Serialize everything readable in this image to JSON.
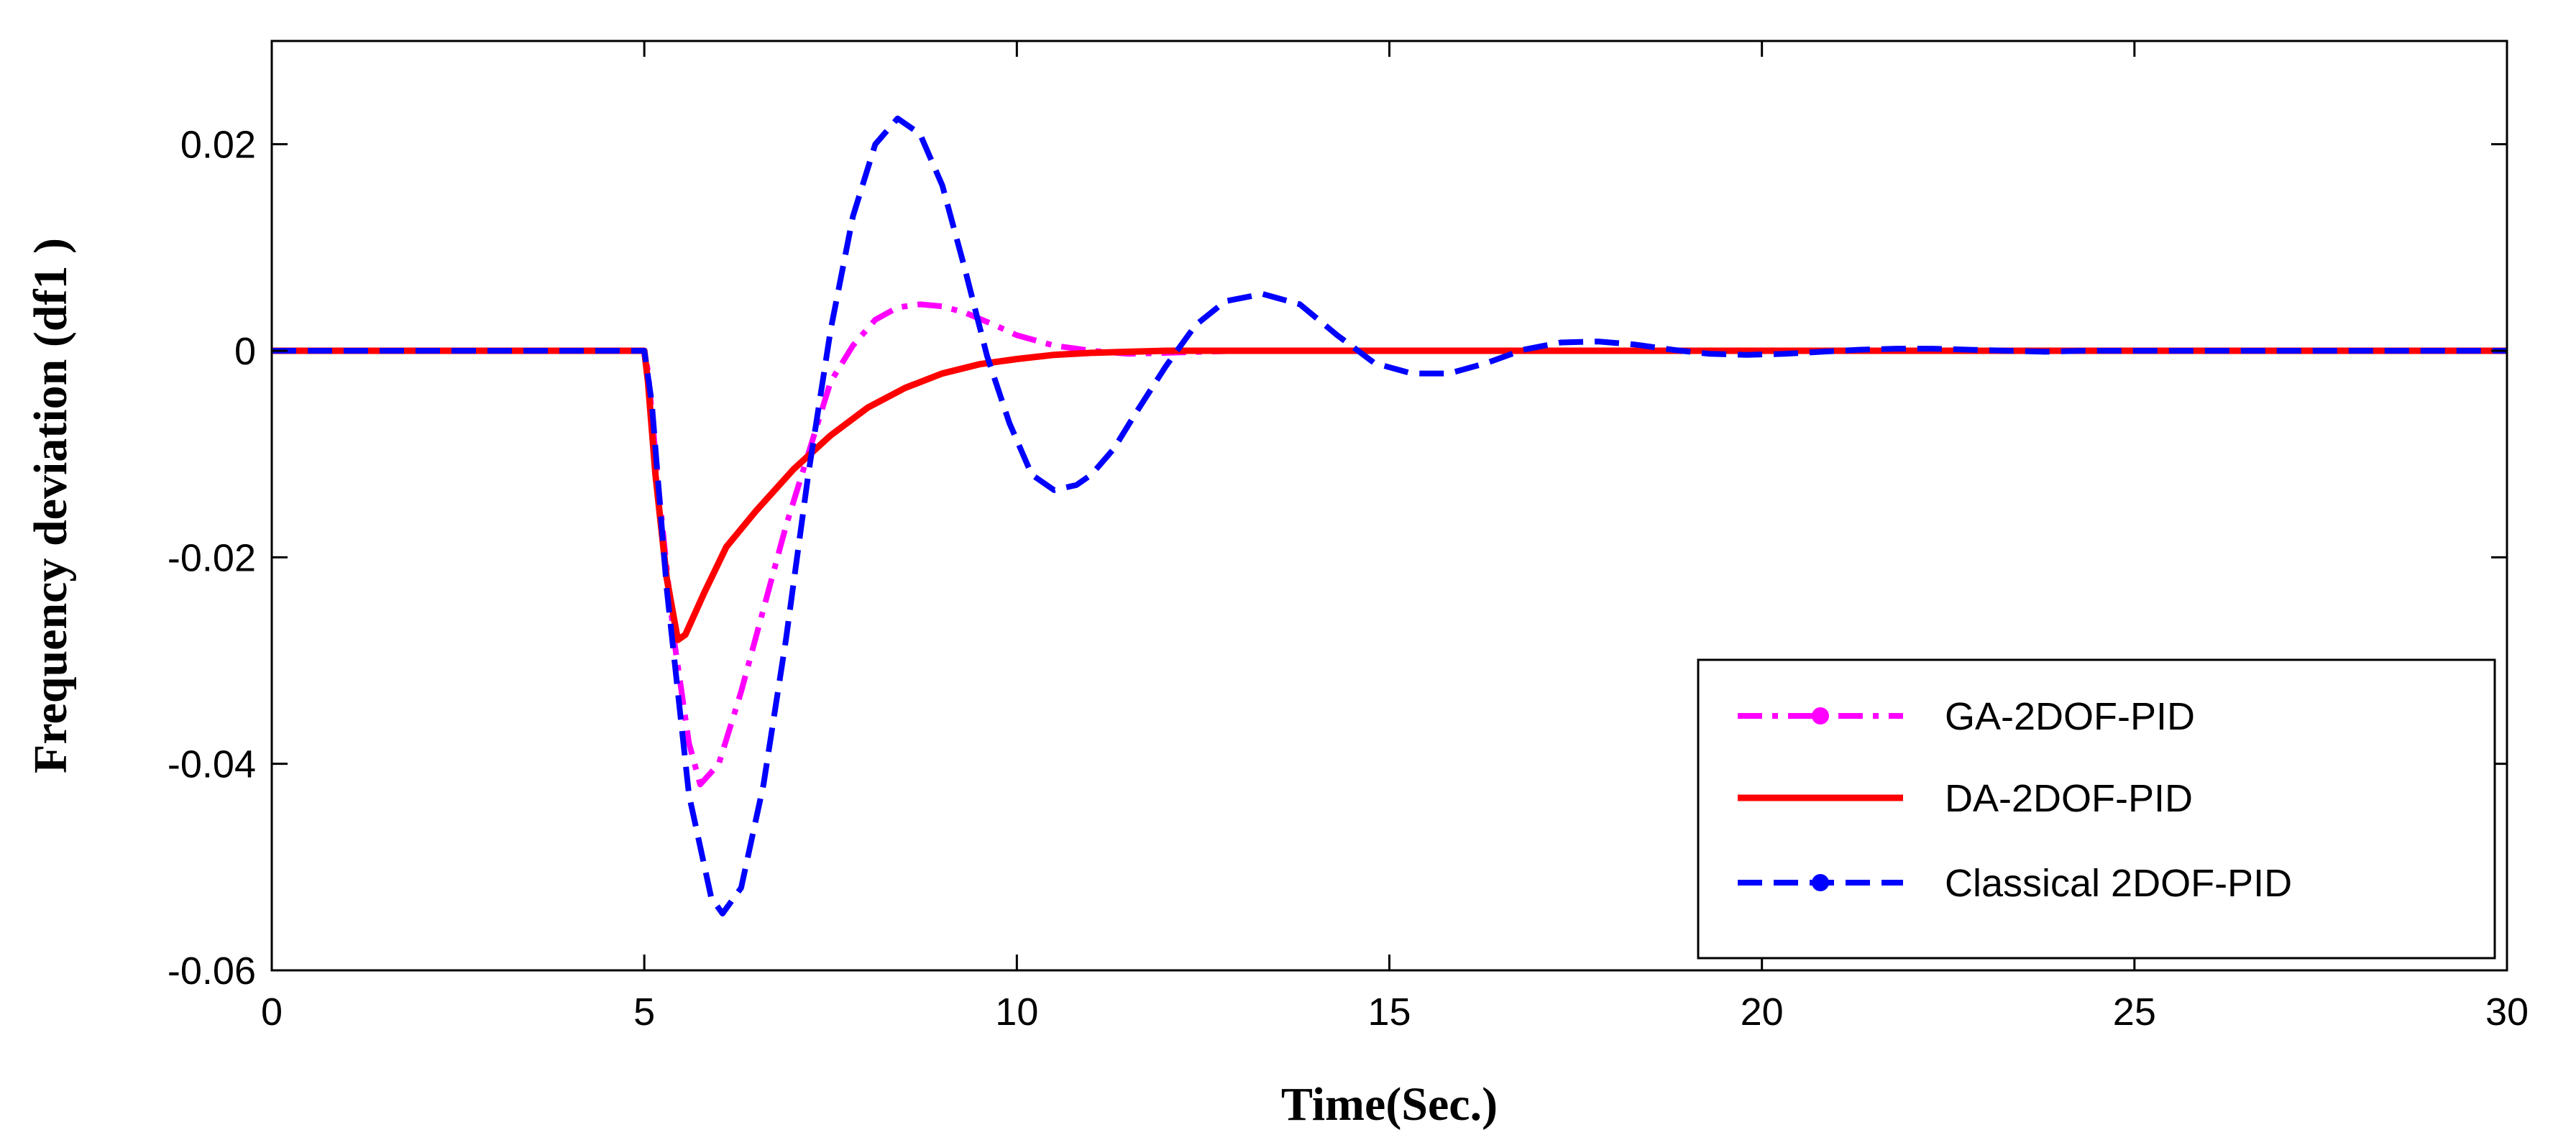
{
  "chart_data": {
    "type": "line",
    "title": "",
    "xlabel": "Time(Sec.)",
    "ylabel": "Frequency deviation (df1 )",
    "xlim": [
      0,
      30
    ],
    "ylim": [
      -0.06,
      0.03
    ],
    "xticks": [
      0,
      5,
      10,
      15,
      20,
      25,
      30
    ],
    "xtick_labels": [
      "0",
      "5",
      "10",
      "15",
      "20",
      "25",
      "30"
    ],
    "yticks": [
      -0.06,
      -0.04,
      -0.02,
      0,
      0.02
    ],
    "ytick_labels": [
      "-0.06",
      "-0.04",
      "-0.02",
      "0",
      "0.02"
    ],
    "grid": false,
    "legend_position": "bottom-right",
    "series": [
      {
        "name": "GA-2DOF-PID",
        "color": "#ff00ff",
        "style": "dash-dot",
        "marker": "dot",
        "x": [
          0,
          5.0,
          5.05,
          5.2,
          5.4,
          5.6,
          5.75,
          6.0,
          6.3,
          6.6,
          6.9,
          7.2,
          7.5,
          7.8,
          8.1,
          8.4,
          8.7,
          9.0,
          9.3,
          9.7,
          10.0,
          10.5,
          11.0,
          11.5,
          12.0,
          12.5,
          13.0,
          30
        ],
        "y": [
          0,
          0,
          -0.002,
          -0.014,
          -0.028,
          -0.038,
          -0.042,
          -0.04,
          -0.033,
          -0.025,
          -0.017,
          -0.01,
          -0.003,
          0.0005,
          0.003,
          0.0042,
          0.0045,
          0.0043,
          0.0037,
          0.0025,
          0.0015,
          0.0005,
          0.0,
          -0.0003,
          -0.0002,
          -0.0001,
          0,
          0
        ]
      },
      {
        "name": "DA-2DOF-PID",
        "color": "#ff0000",
        "style": "solid",
        "marker": "none",
        "x": [
          0,
          5.0,
          5.05,
          5.15,
          5.3,
          5.45,
          5.55,
          5.8,
          6.1,
          6.5,
          7.0,
          7.5,
          8.0,
          8.5,
          9.0,
          9.5,
          10.0,
          10.5,
          11.0,
          11.5,
          12.0,
          30
        ],
        "y": [
          0,
          0,
          -0.003,
          -0.012,
          -0.022,
          -0.028,
          -0.0275,
          -0.0235,
          -0.019,
          -0.0155,
          -0.0115,
          -0.0082,
          -0.0055,
          -0.0036,
          -0.0022,
          -0.0013,
          -0.0008,
          -0.0004,
          -0.0002,
          -0.0001,
          0,
          0
        ]
      },
      {
        "name": "Classical 2DOF-PID",
        "color": "#0000ff",
        "style": "dashed",
        "marker": "dot",
        "x": [
          0,
          5.0,
          5.1,
          5.3,
          5.6,
          5.9,
          6.05,
          6.3,
          6.6,
          6.9,
          7.2,
          7.5,
          7.8,
          8.1,
          8.4,
          8.7,
          9.0,
          9.3,
          9.6,
          9.9,
          10.2,
          10.5,
          10.8,
          11.0,
          11.3,
          11.6,
          12.0,
          12.4,
          12.8,
          13.3,
          13.8,
          14.3,
          14.8,
          15.3,
          15.8,
          16.3,
          16.8,
          17.3,
          17.8,
          18.3,
          18.8,
          19.3,
          19.8,
          20.3,
          20.8,
          21.3,
          21.8,
          22.3,
          22.8,
          23.3,
          23.8,
          24.3,
          30
        ],
        "y": [
          0,
          0,
          -0.005,
          -0.023,
          -0.043,
          -0.053,
          -0.0545,
          -0.052,
          -0.042,
          -0.028,
          -0.012,
          0.002,
          0.013,
          0.02,
          0.0225,
          0.021,
          0.016,
          0.008,
          -0.0005,
          -0.007,
          -0.012,
          -0.0135,
          -0.013,
          -0.012,
          -0.0095,
          -0.006,
          -0.0015,
          0.0025,
          0.0048,
          0.0055,
          0.0045,
          0.0015,
          -0.0012,
          -0.0022,
          -0.0022,
          -0.0012,
          0.0001,
          0.0008,
          0.0009,
          0.0006,
          0.0001,
          -0.0003,
          -0.0004,
          -0.0003,
          -0.0001,
          0.0001,
          0.0002,
          0.0002,
          0.0001,
          0.0,
          -0.0001,
          0,
          0
        ]
      }
    ]
  }
}
